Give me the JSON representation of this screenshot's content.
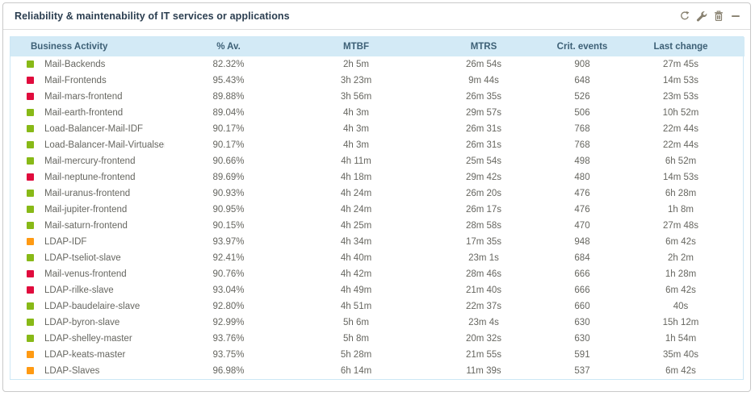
{
  "widget": {
    "title": "Reliability & maintenability of IT services or applications",
    "toolbar_icons": [
      "refresh-icon",
      "wrench-icon",
      "trash-icon",
      "minimize-icon"
    ]
  },
  "colors": {
    "green": "#88b917",
    "red": "#e00b3d",
    "orange": "#ff9a13",
    "header_bg": "#d3eaf6",
    "header_text": "#3d6076",
    "icon_gray": "#87806f"
  },
  "table": {
    "columns": [
      "Business Activity",
      "% Av.",
      "MTBF",
      "MTRS",
      "Crit. events",
      "Last change"
    ],
    "rows": [
      {
        "status": "green",
        "name": "Mail-Backends",
        "av": "82.32%",
        "mtbf": "2h 5m",
        "mtrs": "26m 54s",
        "crit": "908",
        "last": "27m 45s"
      },
      {
        "status": "red",
        "name": "Mail-Frontends",
        "av": "95.43%",
        "mtbf": "3h 23m",
        "mtrs": "9m 44s",
        "crit": "648",
        "last": "14m 53s"
      },
      {
        "status": "red",
        "name": "Mail-mars-frontend",
        "av": "89.88%",
        "mtbf": "3h 56m",
        "mtrs": "26m 35s",
        "crit": "526",
        "last": "23m 53s"
      },
      {
        "status": "green",
        "name": "Mail-earth-frontend",
        "av": "89.04%",
        "mtbf": "4h 3m",
        "mtrs": "29m 57s",
        "crit": "506",
        "last": "10h 52m"
      },
      {
        "status": "green",
        "name": "Load-Balancer-Mail-IDF",
        "av": "90.17%",
        "mtbf": "4h 3m",
        "mtrs": "26m 31s",
        "crit": "768",
        "last": "22m 44s"
      },
      {
        "status": "green",
        "name": "Load-Balancer-Mail-Virtualservice",
        "av": "90.17%",
        "mtbf": "4h 3m",
        "mtrs": "26m 31s",
        "crit": "768",
        "last": "22m 44s"
      },
      {
        "status": "green",
        "name": "Mail-mercury-frontend",
        "av": "90.66%",
        "mtbf": "4h 11m",
        "mtrs": "25m 54s",
        "crit": "498",
        "last": "6h 52m"
      },
      {
        "status": "red",
        "name": "Mail-neptune-frontend",
        "av": "89.69%",
        "mtbf": "4h 18m",
        "mtrs": "29m 42s",
        "crit": "480",
        "last": "14m 53s"
      },
      {
        "status": "green",
        "name": "Mail-uranus-frontend",
        "av": "90.93%",
        "mtbf": "4h 24m",
        "mtrs": "26m 20s",
        "crit": "476",
        "last": "6h 28m"
      },
      {
        "status": "green",
        "name": "Mail-jupiter-frontend",
        "av": "90.95%",
        "mtbf": "4h 24m",
        "mtrs": "26m 17s",
        "crit": "476",
        "last": "1h 8m"
      },
      {
        "status": "green",
        "name": "Mail-saturn-frontend",
        "av": "90.15%",
        "mtbf": "4h 25m",
        "mtrs": "28m 58s",
        "crit": "470",
        "last": "27m 48s"
      },
      {
        "status": "orange",
        "name": "LDAP-IDF",
        "av": "93.97%",
        "mtbf": "4h 34m",
        "mtrs": "17m 35s",
        "crit": "948",
        "last": "6m 42s"
      },
      {
        "status": "green",
        "name": "LDAP-tseliot-slave",
        "av": "92.41%",
        "mtbf": "4h 40m",
        "mtrs": "23m 1s",
        "crit": "684",
        "last": "2h 2m"
      },
      {
        "status": "red",
        "name": "Mail-venus-frontend",
        "av": "90.76%",
        "mtbf": "4h 42m",
        "mtrs": "28m 46s",
        "crit": "666",
        "last": "1h 28m"
      },
      {
        "status": "red",
        "name": "LDAP-rilke-slave",
        "av": "93.04%",
        "mtbf": "4h 49m",
        "mtrs": "21m 40s",
        "crit": "666",
        "last": "6m 42s"
      },
      {
        "status": "green",
        "name": "LDAP-baudelaire-slave",
        "av": "92.80%",
        "mtbf": "4h 51m",
        "mtrs": "22m 37s",
        "crit": "660",
        "last": "40s"
      },
      {
        "status": "green",
        "name": "LDAP-byron-slave",
        "av": "92.99%",
        "mtbf": "5h 6m",
        "mtrs": "23m 4s",
        "crit": "630",
        "last": "15h 12m"
      },
      {
        "status": "green",
        "name": "LDAP-shelley-master",
        "av": "93.76%",
        "mtbf": "5h 8m",
        "mtrs": "20m 32s",
        "crit": "630",
        "last": "1h 54m"
      },
      {
        "status": "orange",
        "name": "LDAP-keats-master",
        "av": "93.75%",
        "mtbf": "5h 28m",
        "mtrs": "21m 55s",
        "crit": "591",
        "last": "35m 40s"
      },
      {
        "status": "orange",
        "name": "LDAP-Slaves",
        "av": "96.98%",
        "mtbf": "6h 14m",
        "mtrs": "11m 39s",
        "crit": "537",
        "last": "6m 42s"
      }
    ]
  }
}
